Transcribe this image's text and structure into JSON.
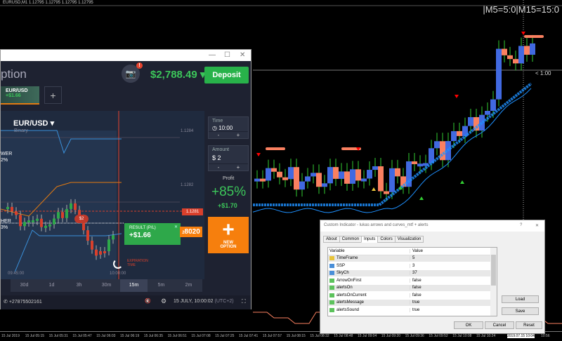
{
  "mt4": {
    "symbol_line": "EURUSD,M1  1.12795 1.12795 1.12795 1.12795",
    "tf_status": "|M5=5:0|M15=15:0",
    "countdown": "< 1:00",
    "colors": {
      "bull": "#4169e1",
      "bear": "#fa8060",
      "wick": "#32cd32",
      "curve": "#1e90ff",
      "arrow_down": "#ff0000",
      "arrow_up": "#32cd32"
    },
    "time_axis": [
      "15 Jul 2019",
      "15 Jul 05:15",
      "15 Jul 05:31",
      "15 Jul 05:47",
      "15 Jul 06:03",
      "15 Jul 06:19",
      "15 Jul 06:35",
      "15 Jul 06:51",
      "15 Jul 07:08",
      "15 Jul 07:25",
      "15 Jul 07:41",
      "15 Jul 07:57",
      "15 Jul 08:15",
      "15 Jul 08:32",
      "15 Jul 08:48",
      "15 Jul 09:04",
      "15 Jul 09:20",
      "15 Jul 09:36",
      "15 Jul 09:52",
      "15 Jul 10:08",
      "15 Jul 10:24",
      "2019.07.15 10:04",
      "10:56"
    ]
  },
  "broker": {
    "window": {
      "minimize": "—",
      "maximize": "☐",
      "close": "✕"
    },
    "logo": "ption",
    "camera_icon": "camera",
    "notification_badge": "!",
    "balance": "$2,788.49",
    "deposit": "Deposit",
    "tab": {
      "pair": "EUR/USD",
      "pl": "+$1.66"
    },
    "add_tab": "+",
    "asset": {
      "pair": "EUR/USD",
      "type": "Binary"
    },
    "levels": [
      "1.1284",
      "1.1282"
    ],
    "current_price": "1.1281",
    "price_tag": "8020",
    "price_tag_prefix": "2",
    "side_labels": {
      "lower": "WER",
      "lower_pct": "2%",
      "higher": "HER",
      "higher_pct": "3%"
    },
    "bet_marker": "$2",
    "result": {
      "label": "RESULT (P/L)",
      "value": "+$1.66",
      "close": "✕"
    },
    "expiration": "EXPIRATION TIME",
    "time_labels": [
      "09:45:00",
      "10:00:00"
    ],
    "time": {
      "label": "Time",
      "value": "10:00",
      "minus": "-",
      "plus": "+"
    },
    "amount": {
      "label": "Amount",
      "currency": "$",
      "value": "2",
      "minus": "-",
      "plus": "+"
    },
    "profit": {
      "label": "Profit",
      "percent": "+85%",
      "value": "+$1.70"
    },
    "new_option": {
      "icon": "+",
      "label": "NEW OPTION"
    },
    "timeframes": [
      {
        "label": "30d"
      },
      {
        "label": "1d"
      },
      {
        "label": "3h"
      },
      {
        "label": "30m"
      },
      {
        "label": "15m",
        "active": true
      },
      {
        "label": "5m"
      },
      {
        "label": "2m"
      }
    ],
    "footer": {
      "phone": "+27875502161",
      "datetime": "15 JULY, 10:00:02",
      "tz": "(UTC+2)"
    }
  },
  "dialog": {
    "title": "Custom Indicator - lukas arrows and curves_mtf + alerts",
    "help": "?",
    "close": "✕",
    "tabs": [
      {
        "label": "About"
      },
      {
        "label": "Common"
      },
      {
        "label": "Inputs",
        "active": true
      },
      {
        "label": "Colors"
      },
      {
        "label": "Visualization"
      }
    ],
    "columns": [
      "Variable",
      "Value"
    ],
    "rows": [
      {
        "icon": "ab",
        "name": "TimeFrame",
        "value": "5"
      },
      {
        "icon": "int",
        "name": "SSP",
        "value": "3"
      },
      {
        "icon": "int",
        "name": "SkyCh",
        "value": "37"
      },
      {
        "icon": "bool",
        "name": "ArrowOnFirst",
        "value": "false"
      },
      {
        "icon": "bool",
        "name": "alertsOn",
        "value": "false"
      },
      {
        "icon": "bool",
        "name": "alertsOnCurrent",
        "value": "false"
      },
      {
        "icon": "bool",
        "name": "alertsMessage",
        "value": "true"
      },
      {
        "icon": "bool",
        "name": "alertsSound",
        "value": "true"
      }
    ],
    "buttons": {
      "load": "Load",
      "save": "Save",
      "ok": "OK",
      "cancel": "Cancel",
      "reset": "Reset"
    }
  }
}
